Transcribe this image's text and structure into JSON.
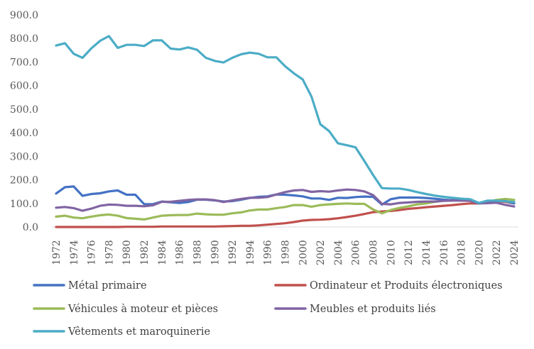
{
  "chart_data": {
    "type": "line",
    "title": "",
    "xlabel": "",
    "ylabel": "",
    "ylim": [
      0,
      900
    ],
    "y_ticks": [
      "0.0",
      "100.0",
      "200.0",
      "300.0",
      "400.0",
      "500.0",
      "600.0",
      "700.0",
      "800.0",
      "900.0"
    ],
    "x_tick_labels": [
      "1972",
      "1974",
      "1976",
      "1978",
      "1980",
      "1982",
      "1984",
      "1986",
      "1988",
      "1990",
      "1992",
      "1994",
      "1996",
      "1998",
      "2000",
      "2002",
      "2004",
      "2006",
      "2008",
      "2010",
      "2012",
      "2014",
      "2016",
      "2018",
      "2020",
      "2022",
      "2024"
    ],
    "x": [
      1972,
      1973,
      1974,
      1975,
      1976,
      1977,
      1978,
      1979,
      1980,
      1981,
      1982,
      1983,
      1984,
      1985,
      1986,
      1987,
      1988,
      1989,
      1990,
      1991,
      1992,
      1993,
      1994,
      1995,
      1996,
      1997,
      1998,
      1999,
      2000,
      2001,
      2002,
      2003,
      2004,
      2005,
      2006,
      2007,
      2008,
      2009,
      2010,
      2011,
      2012,
      2013,
      2014,
      2015,
      2016,
      2017,
      2018,
      2019,
      2020,
      2021,
      2022,
      2023,
      2024
    ],
    "grid": false,
    "legend_position": "bottom",
    "series": [
      {
        "name": "Métal primaire",
        "color": "#4472C4",
        "values": [
          142,
          169,
          172,
          132,
          140,
          143,
          151,
          155,
          137,
          137,
          97,
          97,
          108,
          105,
          102,
          106,
          116,
          116,
          113,
          108,
          110,
          116,
          123,
          128,
          130,
          138,
          137,
          134,
          130,
          121,
          121,
          115,
          124,
          123,
          127,
          129,
          128,
          95,
          118,
          125,
          125,
          125,
          123,
          120,
          116,
          114,
          112,
          112,
          100,
          110,
          111,
          110,
          100
        ]
      },
      {
        "name": "Ordinateur et Produits électroniques",
        "color": "#C0504D",
        "values": [
          0,
          0,
          0,
          0,
          0,
          0,
          0,
          0,
          1,
          1,
          1,
          1,
          2,
          2,
          2,
          2,
          2,
          2,
          2,
          3,
          4,
          5,
          5,
          7,
          10,
          13,
          16,
          21,
          27,
          30,
          31,
          33,
          37,
          42,
          48,
          55,
          63,
          66,
          68,
          72,
          77,
          80,
          84,
          87,
          90,
          93,
          97,
          100,
          100,
          106,
          110,
          107,
          100
        ]
      },
      {
        "name": "Véhicules à moteur et pièces",
        "color": "#9BBB59",
        "values": [
          44,
          48,
          40,
          37,
          44,
          50,
          53,
          48,
          38,
          35,
          32,
          40,
          48,
          50,
          51,
          51,
          57,
          54,
          52,
          52,
          58,
          62,
          70,
          74,
          74,
          80,
          85,
          93,
          93,
          86,
          93,
          96,
          98,
          100,
          98,
          98,
          74,
          58,
          72,
          81,
          88,
          96,
          100,
          107,
          112,
          115,
          117,
          115,
          100,
          107,
          115,
          119,
          115
        ]
      },
      {
        "name": "Meubles et produits liés",
        "color": "#8064A2",
        "values": [
          82,
          85,
          80,
          69,
          78,
          90,
          95,
          94,
          90,
          90,
          88,
          92,
          107,
          107,
          111,
          115,
          117,
          117,
          114,
          106,
          113,
          119,
          124,
          124,
          127,
          138,
          148,
          155,
          157,
          149,
          152,
          150,
          155,
          159,
          157,
          151,
          135,
          98,
          96,
          102,
          104,
          107,
          108,
          108,
          111,
          112,
          112,
          111,
          100,
          101,
          103,
          94,
          87
        ]
      },
      {
        "name": "Vêtements et maroquinerie",
        "color": "#4BACC6",
        "values": [
          770,
          780,
          735,
          718,
          758,
          790,
          810,
          760,
          773,
          773,
          768,
          792,
          792,
          757,
          753,
          762,
          752,
          718,
          705,
          698,
          718,
          733,
          740,
          735,
          720,
          720,
          682,
          652,
          626,
          553,
          436,
          407,
          355,
          347,
          338,
          280,
          220,
          165,
          163,
          163,
          157,
          148,
          140,
          133,
          128,
          124,
          120,
          118,
          102,
          112,
          112,
          109,
          106
        ]
      }
    ]
  }
}
